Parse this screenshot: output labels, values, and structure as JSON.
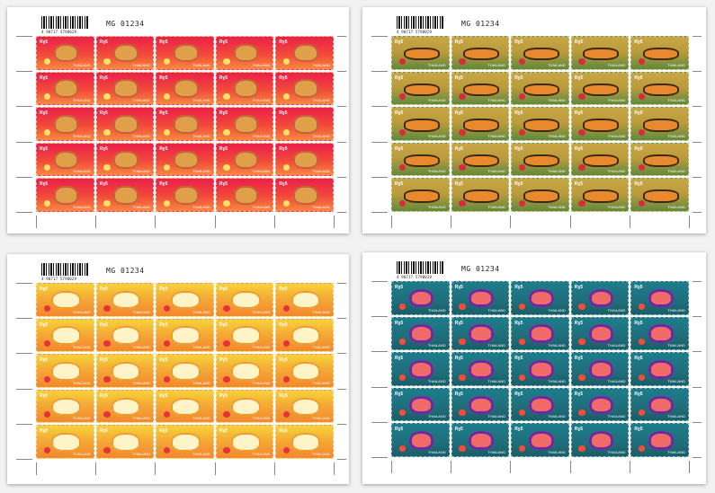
{
  "sheets": [
    {
      "id": "sheet-red",
      "variant": "red",
      "control_number": "MG 01234",
      "barcode_digits": "4 90717 5790029",
      "stamp": {
        "label": "Rɣ5",
        "small": "THAILAND"
      },
      "rows": 5,
      "cols": 5
    },
    {
      "id": "sheet-olive",
      "variant": "olive",
      "control_number": "MG 01234",
      "barcode_digits": "4 90717 5790029",
      "stamp": {
        "label": "Rɣ5",
        "small": "THAILAND"
      },
      "rows": 5,
      "cols": 5
    },
    {
      "id": "sheet-yellow",
      "variant": "yellow",
      "control_number": "MG 01234",
      "barcode_digits": "4 90717 5790029",
      "stamp": {
        "label": "Rɣ5",
        "small": "THAILAND"
      },
      "rows": 5,
      "cols": 5
    },
    {
      "id": "sheet-teal",
      "variant": "teal",
      "control_number": "MG 01234",
      "barcode_digits": "4 90717 5790029",
      "stamp": {
        "label": "Rɣ5",
        "small": "THAILAND"
      },
      "rows": 5,
      "cols": 5
    }
  ],
  "colors": {
    "background": "#f2f2f2",
    "sheet": "#ffffff",
    "red": "#ea1f4a",
    "olive": "#c9a645",
    "yellow": "#f6d23a",
    "teal": "#1d7d8c"
  }
}
